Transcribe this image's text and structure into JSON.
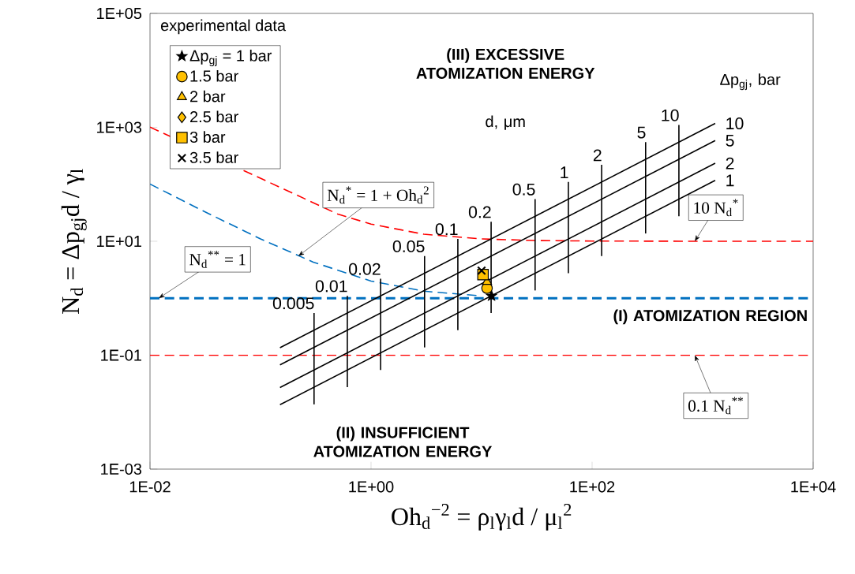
{
  "chart_data": {
    "type": "line",
    "xlabel": "Oh$_{d}$$^{−2}$ = ρ$_{l}$γ$_{l}$d / μ$_{l}$$^{2}$",
    "ylabel": "N$_{d}$ = Δp$_{gj}$d / γ$_{l}$",
    "log": "xy",
    "grid": false,
    "legend": "top left",
    "legend_title": "experimental data",
    "xlim": [
      0.01,
      10000
    ],
    "ylim": [
      0.001,
      100000
    ],
    "xticks": [
      {
        "value": 0.01,
        "label": "1E-02"
      },
      {
        "value": 1,
        "label": "1E+00"
      },
      {
        "value": 100,
        "label": "1E+02"
      },
      {
        "value": 10000,
        "label": "1E+04"
      }
    ],
    "yticks": [
      {
        "value": 0.001,
        "label": "1E-03"
      },
      {
        "value": 0.1,
        "label": "1E-01"
      },
      {
        "value": 10,
        "label": "1E+01"
      },
      {
        "value": 1000,
        "label": "1E+03"
      },
      {
        "value": 100000,
        "label": "1E+05"
      }
    ],
    "ref_lines": [
      {
        "axis": "y",
        "value": 1,
        "color": "#0070c0",
        "line_style": "dashed"
      },
      {
        "axis": "y",
        "value": 0.1,
        "color": "#ff0000",
        "line_style": "dashed"
      }
    ],
    "series": [
      {
        "color": "#ff0000",
        "line_style": "dashed",
        "x": [
          0.01,
          0.5,
          1,
          3,
          10,
          30,
          100,
          1000,
          10000
        ],
        "values": [
          1010,
          30,
          20,
          13.3,
          11,
          10.3,
          10.1,
          10,
          10
        ]
      },
      {
        "color": "#0070c0",
        "line_style": "dashed",
        "x": [
          0.01,
          0.03,
          0.1,
          0.3,
          1,
          3,
          10
        ],
        "values": [
          101,
          34.3,
          11,
          4.3,
          2,
          1.33,
          1.1
        ]
      },
      {
        "type": "line",
        "color": "#000000",
        "x": [
          0.15,
          1300
        ],
        "values": [
          0.0135,
          117
        ]
      },
      {
        "type": "line",
        "color": "#000000",
        "x": [
          0.15,
          1300
        ],
        "values": [
          0.027,
          234
        ]
      },
      {
        "type": "line",
        "color": "#000000",
        "x": [
          0.15,
          1300
        ],
        "values": [
          0.0675,
          585
        ]
      },
      {
        "type": "line",
        "color": "#000000",
        "x": [
          0.15,
          1300
        ],
        "values": [
          0.135,
          1170
        ]
      },
      {
        "type": "line",
        "color": "#000000",
        "x": [
          0.305,
          0.305
        ],
        "values": [
          0.0137,
          0.55
        ]
      },
      {
        "type": "line",
        "color": "#000000",
        "x": [
          0.61,
          0.61
        ],
        "values": [
          0.0275,
          1.1
        ]
      },
      {
        "type": "line",
        "color": "#000000",
        "x": [
          1.22,
          1.22
        ],
        "values": [
          0.055,
          2.2
        ]
      },
      {
        "type": "line",
        "color": "#000000",
        "x": [
          3.05,
          3.05
        ],
        "values": [
          0.137,
          5.5
        ]
      },
      {
        "type": "line",
        "color": "#000000",
        "x": [
          6.1,
          6.1
        ],
        "values": [
          0.275,
          11
        ]
      },
      {
        "type": "line",
        "color": "#000000",
        "x": [
          12.2,
          12.2
        ],
        "values": [
          0.55,
          22
        ]
      },
      {
        "type": "line",
        "color": "#000000",
        "x": [
          30.5,
          30.5
        ],
        "values": [
          1.37,
          55
        ]
      },
      {
        "type": "line",
        "color": "#000000",
        "x": [
          61,
          61
        ],
        "values": [
          2.75,
          110
        ]
      },
      {
        "type": "line",
        "color": "#000000",
        "x": [
          122,
          122
        ],
        "values": [
          5.5,
          220
        ]
      },
      {
        "type": "line",
        "color": "#000000",
        "x": [
          305,
          305
        ],
        "values": [
          13.7,
          550
        ]
      },
      {
        "type": "line",
        "color": "#000000",
        "x": [
          610,
          610
        ],
        "values": [
          27.5,
          1100
        ]
      },
      {
        "type": "scatter",
        "name": "Δp$_{gj}$ = 1 bar",
        "marker": "star",
        "color": "#000000",
        "x": [
          12.3
        ],
        "values": [
          1.1
        ]
      },
      {
        "type": "scatter",
        "name": "1.5 bar",
        "marker": "circle",
        "color": "#ffc000",
        "x": [
          11.2
        ],
        "values": [
          1.5
        ]
      },
      {
        "type": "scatter",
        "name": "2 bar",
        "marker": "triangle",
        "color": "#ffc000",
        "x": [
          11.2
        ],
        "values": [
          1.95
        ]
      },
      {
        "type": "scatter",
        "name": "2.5 bar",
        "marker": "diamond",
        "color": "#ffc000",
        "x": [
          null
        ],
        "values": [
          null
        ]
      },
      {
        "type": "scatter",
        "name": "3 bar",
        "marker": "square",
        "color": "#ffc000",
        "x": [
          10.3
        ],
        "values": [
          2.6
        ]
      },
      {
        "type": "scatter",
        "name": "3.5 bar",
        "marker": "cross",
        "color": "#000000",
        "x": [
          10
        ],
        "values": [
          3.05
        ]
      }
    ],
    "annotations": [
      "(III) EXCESSIVE ATOMIZATION ENERGY",
      "(I) ATOMIZATION REGION",
      "(II) INSUFFICIENT ATOMIZATION ENERGY",
      "d, μm",
      "Δp$_{gj}$, bar",
      {
        "text": "0.005",
        "x": 0.305,
        "y": 0.55
      },
      {
        "text": "0.01",
        "x": 0.61,
        "y": 1.1
      },
      {
        "text": "0.02",
        "x": 1.22,
        "y": 2.2
      },
      {
        "text": "0.05",
        "x": 3.05,
        "y": 5.5
      },
      {
        "text": "0.1",
        "x": 6.1,
        "y": 11
      },
      {
        "text": "0.2",
        "x": 12.2,
        "y": 22
      },
      {
        "text": "0.5",
        "x": 30.5,
        "y": 55
      },
      {
        "text": "1",
        "x": 61,
        "y": 110
      },
      {
        "text": "2",
        "x": 122,
        "y": 220
      },
      {
        "text": "5",
        "x": 305,
        "y": 550
      },
      {
        "text": "10",
        "x": 610,
        "y": 1100
      },
      {
        "text": "10",
        "x": 1300,
        "y": 1170
      },
      {
        "text": "5",
        "x": 1300,
        "y": 585
      },
      {
        "text": "2",
        "x": 1300,
        "y": 234
      },
      {
        "text": "1",
        "x": 1300,
        "y": 117
      },
      {
        "text": "N$_{d}$$^{*}$ = 1 + Oh$_{d}$$^{2}$",
        "x": 0.22,
        "y": 5.5
      },
      {
        "text": "N$_{d}$$^{**}$ = 1",
        "x": 0.012,
        "y": 1
      },
      {
        "text": "10 N$_{d}$$^{*}$",
        "x": 850,
        "y": 10
      },
      {
        "text": "0.1 N$_{d}$$^{**}$",
        "x": 850,
        "y": 0.1
      }
    ]
  }
}
